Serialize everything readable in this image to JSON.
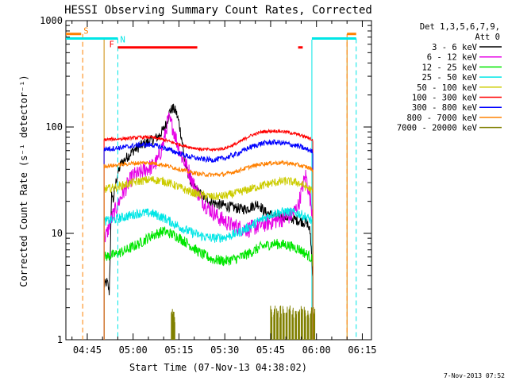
{
  "chart_data": {
    "type": "line",
    "title": "HESSI Observing Summary Count Rates, Corrected",
    "xlabel": "Start Time (07-Nov-13 04:38:02)",
    "ylabel": "Corrected Count Rate (s⁻¹ detector⁻¹)",
    "y_scale": "log",
    "ylim": [
      1,
      1000
    ],
    "x_unit": "minutes from 04:38:02",
    "xlim": [
      0,
      100
    ],
    "x_ticks": [
      {
        "label": "04:45",
        "x": 7
      },
      {
        "label": "05:00",
        "x": 22
      },
      {
        "label": "05:15",
        "x": 37
      },
      {
        "label": "05:30",
        "x": 52
      },
      {
        "label": "05:45",
        "x": 67
      },
      {
        "label": "06:00",
        "x": 82
      },
      {
        "label": "06:15",
        "x": 97
      }
    ],
    "y_ticks": [
      {
        "label": "1",
        "y": 1
      },
      {
        "label": "10",
        "y": 10
      },
      {
        "label": "100",
        "y": 100
      },
      {
        "label": "1000",
        "y": 1000
      }
    ],
    "legend": {
      "placement": "right",
      "header_1": "Det 1,3,5,6,7,9,",
      "header_2": "Att 0"
    },
    "series": [
      {
        "name": "3 - 6 keV",
        "color": "#000000",
        "noise": 0.05,
        "x": [
          12.5,
          13.5,
          14.2,
          14.6,
          15.0,
          15.5,
          16.5,
          18,
          20,
          22,
          25,
          28,
          30,
          32,
          33,
          34,
          35,
          36,
          37,
          38,
          39,
          41,
          43,
          45,
          47,
          49,
          51,
          53,
          55,
          57,
          59,
          61,
          63,
          65,
          67,
          69,
          71,
          73,
          75,
          77,
          79,
          80,
          80.8
        ],
        "y": [
          3.2,
          3.5,
          2.8,
          8,
          25,
          20,
          32,
          45,
          52,
          60,
          68,
          75,
          80,
          95,
          110,
          140,
          150,
          140,
          110,
          75,
          45,
          30,
          25,
          22,
          20,
          19,
          18.5,
          18,
          17.5,
          17,
          17,
          18,
          19,
          16,
          15,
          14.5,
          14.5,
          14,
          13.5,
          13,
          12.5,
          10,
          4
        ]
      },
      {
        "name": "6 - 12 keV",
        "color": "#e600e6",
        "noise": 0.08,
        "x": [
          12.5,
          13.5,
          14.5,
          16,
          18,
          20,
          22,
          24,
          26,
          28,
          30,
          32,
          33.5,
          35,
          36.5,
          38,
          40,
          42,
          44,
          46,
          48,
          50,
          52,
          54,
          56,
          58,
          60,
          62,
          64,
          66,
          68,
          70,
          72,
          74,
          76,
          77.5,
          78.5,
          79.5,
          80.8
        ],
        "y": [
          9,
          10,
          13,
          16,
          22,
          28,
          35,
          36,
          40,
          42,
          48,
          72,
          120,
          100,
          70,
          52,
          40,
          28,
          22,
          18,
          16,
          14,
          13,
          12,
          11.5,
          11,
          11,
          11.5,
          12,
          12.5,
          13,
          13.5,
          14,
          15,
          18,
          28,
          35,
          25,
          15
        ]
      },
      {
        "name": "12 - 25 keV",
        "color": "#00e600",
        "noise": 0.05,
        "x": [
          12.5,
          16,
          20,
          24,
          28,
          32,
          36,
          40,
          44,
          48,
          52,
          56,
          60,
          64,
          68,
          72,
          76,
          80,
          80.8
        ],
        "y": [
          6,
          6.3,
          7,
          8,
          9.5,
          10.5,
          9.5,
          8,
          6.5,
          5.7,
          5.5,
          5.8,
          6.5,
          7.5,
          8,
          7.8,
          7.2,
          6,
          5.5
        ]
      },
      {
        "name": "25 - 50 keV",
        "color": "#00e6e6",
        "noise": 0.045,
        "x": [
          12.5,
          16,
          20,
          24,
          28,
          32,
          36,
          40,
          44,
          48,
          52,
          56,
          60,
          64,
          68,
          72,
          76,
          80,
          80.8
        ],
        "y": [
          13,
          13.5,
          14.5,
          15.5,
          15.5,
          14,
          12,
          10.5,
          9.5,
          9,
          9.2,
          10,
          11.5,
          13.5,
          15.5,
          16,
          15.5,
          13.5,
          12
        ]
      },
      {
        "name": "50 - 100 keV",
        "color": "#cccc00",
        "noise": 0.04,
        "x": [
          12.5,
          16,
          20,
          24,
          28,
          32,
          36,
          40,
          44,
          48,
          52,
          56,
          60,
          64,
          68,
          72,
          76,
          80,
          80.8
        ],
        "y": [
          26,
          27,
          29,
          31,
          32,
          31,
          28,
          25,
          23,
          22,
          22.5,
          24,
          26,
          28,
          30,
          31,
          30,
          26,
          24
        ]
      },
      {
        "name": "100 - 300 keV",
        "color": "#ff0000",
        "noise": 0.015,
        "x": [
          12.5,
          16,
          20,
          24,
          28,
          32,
          36,
          40,
          44,
          48,
          52,
          56,
          60,
          64,
          68,
          72,
          76,
          80,
          80.8
        ],
        "y": [
          76,
          77,
          78,
          80,
          80,
          76,
          70,
          65,
          62,
          61,
          63,
          70,
          82,
          90,
          92,
          90,
          85,
          78,
          74
        ]
      },
      {
        "name": "300 - 800 keV",
        "color": "#0000ff",
        "noise": 0.025,
        "x": [
          12.5,
          16,
          20,
          24,
          28,
          32,
          36,
          40,
          44,
          48,
          52,
          56,
          60,
          64,
          68,
          72,
          76,
          80,
          80.8
        ],
        "y": [
          62,
          63,
          65,
          68,
          68,
          64,
          58,
          53,
          50,
          49,
          51,
          56,
          64,
          70,
          72,
          70,
          66,
          60,
          58
        ]
      },
      {
        "name": "800 - 7000 keV",
        "color": "#ff8000",
        "noise": 0.02,
        "x": [
          12.5,
          16,
          20,
          24,
          28,
          32,
          36,
          40,
          44,
          48,
          52,
          56,
          60,
          64,
          68,
          72,
          76,
          80,
          80.8
        ],
        "y": [
          43,
          43.5,
          45,
          46,
          46,
          44,
          41,
          38,
          36,
          35.5,
          36,
          38.5,
          42,
          45,
          46,
          46,
          44,
          41,
          39
        ]
      },
      {
        "name": "7000 - 20000 keV",
        "color": "#808000",
        "noise": 0,
        "low_counts": true,
        "x": [
          34.5,
          35.2,
          67,
          68,
          69,
          70,
          71,
          72,
          73,
          74,
          75,
          76,
          77,
          78,
          79,
          80,
          81
        ],
        "y": [
          2,
          1.8,
          2,
          2,
          2,
          2,
          2,
          2,
          2,
          2,
          2,
          2,
          2,
          2,
          2,
          2,
          2
        ]
      }
    ],
    "flags": [
      {
        "name": "S",
        "color": "#ff8000",
        "y": 750,
        "x_start": 0,
        "x_end": 5,
        "line_x": [
          5.5,
          92
        ]
      },
      {
        "name": "N",
        "color": "#00e6e6",
        "y": 680,
        "x_start": 0,
        "x_end": 17,
        "line_x": [
          17,
          95
        ]
      },
      {
        "name": "F",
        "color": "#ff0000",
        "y": 560,
        "x_start": 17,
        "x_end": 43,
        "line_x": []
      }
    ],
    "flag_segments": [
      {
        "name": "S",
        "color": "#ff8000",
        "y": 750,
        "x_start": 92,
        "x_end": 95
      },
      {
        "name": "N",
        "color": "#00e6e6",
        "y": 680,
        "x_start": 80.5,
        "x_end": 95
      },
      {
        "name": "F",
        "color": "#ff0000",
        "y": 560,
        "x_start": 76,
        "x_end": 77.5
      }
    ],
    "vertical_bounds": [
      {
        "color": "#00e6e6",
        "x": 80.5
      },
      {
        "color": "#cc8800",
        "x": 12.5
      },
      {
        "color": "#cc8800",
        "x": 92
      }
    ],
    "timestamp": "7-Nov-2013 07:52"
  }
}
